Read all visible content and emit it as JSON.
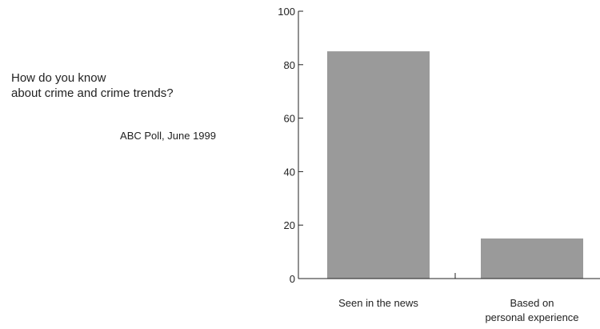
{
  "chart_data": {
    "type": "bar",
    "title_lines": [
      "How do you know",
      "about crime and crime trends?"
    ],
    "subtitle": "ABC Poll, June 1999",
    "categories": [
      [
        "Seen in the news"
      ],
      [
        "Based on",
        "personal experience"
      ]
    ],
    "values": [
      85,
      15
    ],
    "ylim": [
      0,
      100
    ],
    "yticks": [
      0,
      20,
      40,
      60,
      80,
      100
    ],
    "xlabel": "",
    "ylabel": "",
    "grid": false,
    "legend": "none",
    "bar_color": "#9a9a9a",
    "axis_color": "#222222"
  }
}
